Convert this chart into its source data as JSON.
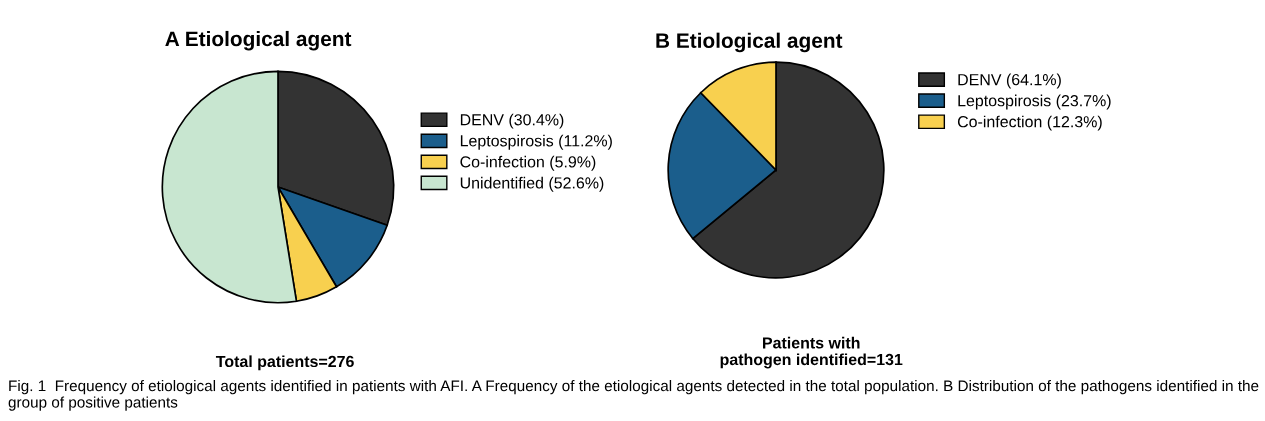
{
  "chart_data": [
    {
      "type": "pie",
      "title": "A Etiological agent",
      "xlabel": "Total patients=276",
      "categories": [
        "DENV (30.4%)",
        "Leptospirosis (11.2%)",
        "Co-infection (5.9%)",
        "Unidentified (52.6%)"
      ],
      "values": [
        30.4,
        11.2,
        5.9,
        52.6
      ],
      "colors": [
        "#333333",
        "#1b5e8c",
        "#f8d04f",
        "#c8e6d0"
      ],
      "legend": "right",
      "annotations": [
        "Fig. 1  Frequency of etiological agents identified in patients with AFI. A Frequency of the etiological agents detected in the total population. B Distribution of the pathogens identified in the group of positive patients"
      ]
    },
    {
      "type": "pie",
      "title": "B Etiological agent",
      "xlabel": "Patients with\npathogen identified=131",
      "categories": [
        "DENV (64.1%)",
        "Leptospirosis (23.7%)",
        "Co-infection (12.3%)"
      ],
      "values": [
        64.1,
        23.7,
        12.3
      ],
      "colors": [
        "#333333",
        "#1b5e8c",
        "#f8d04f"
      ],
      "legend": "right"
    }
  ]
}
